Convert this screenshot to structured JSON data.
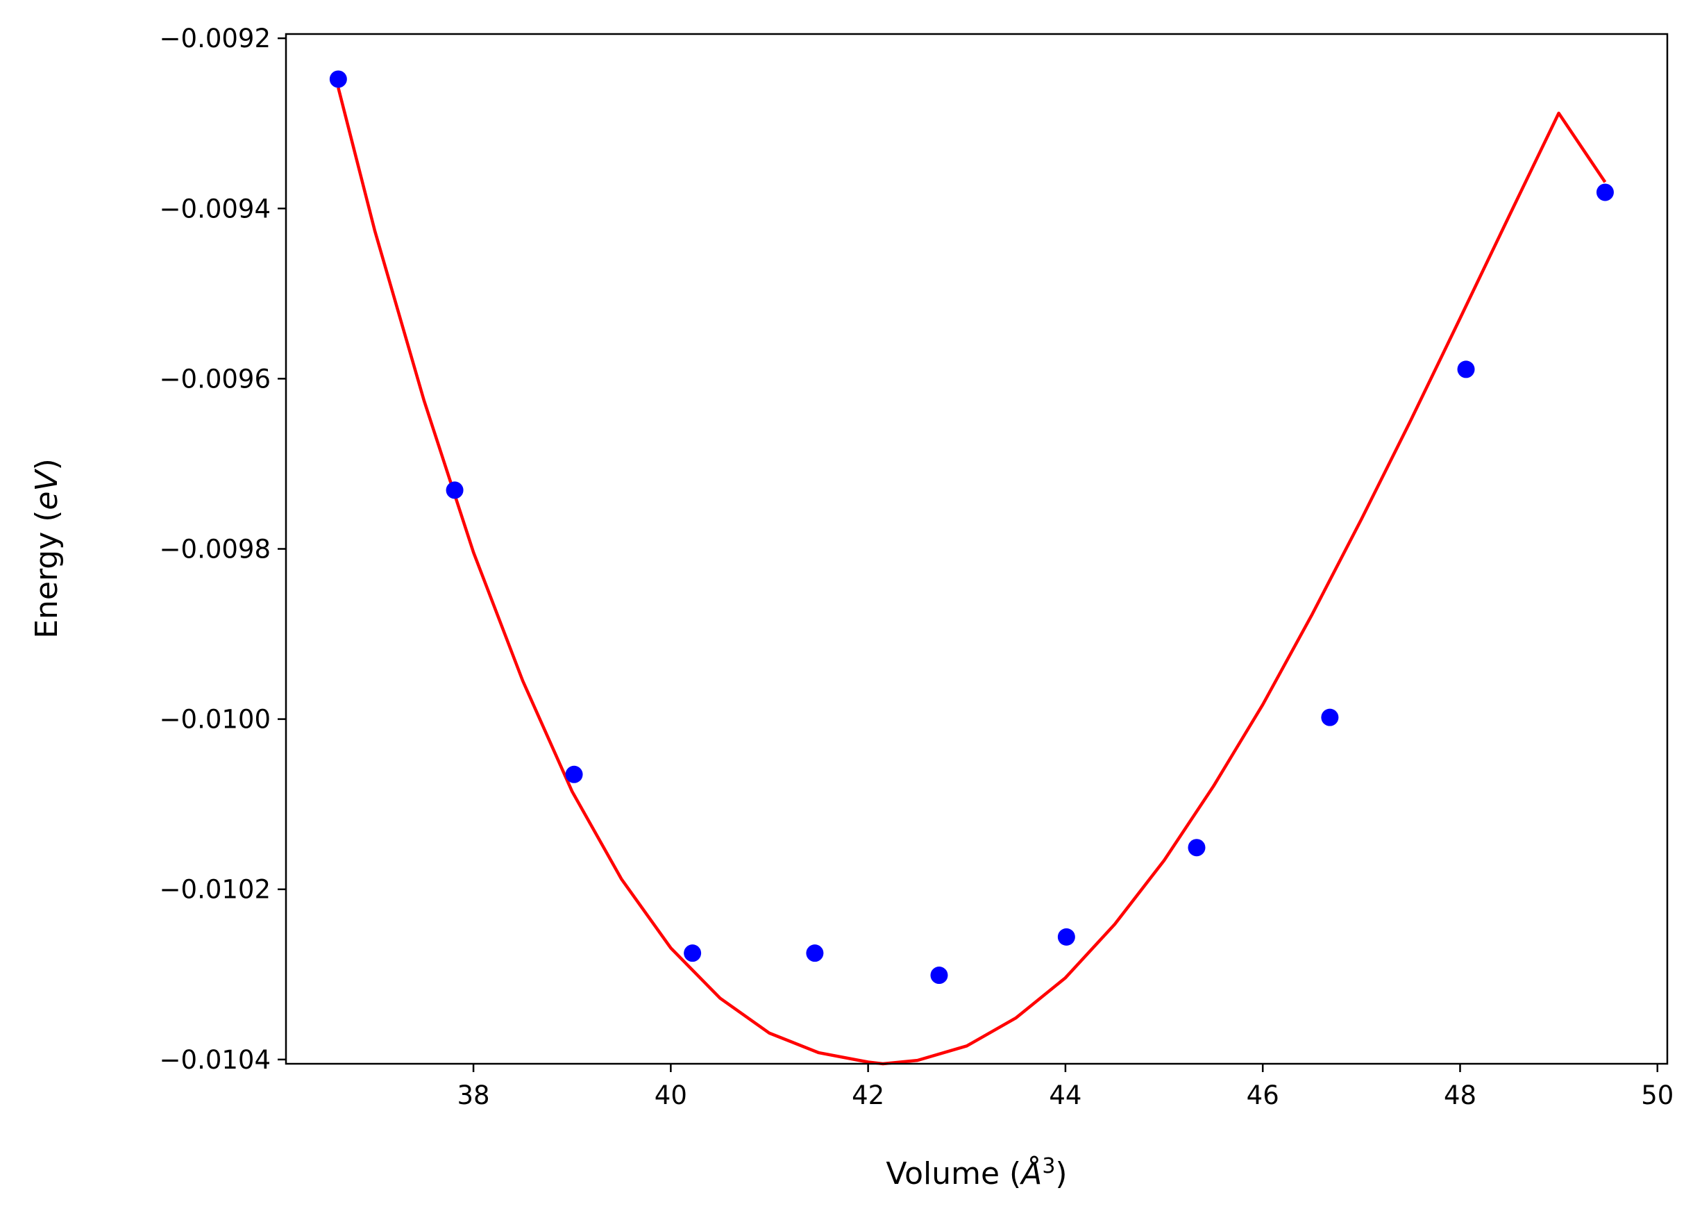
{
  "chart_data": {
    "type": "scatter",
    "title": "",
    "xlabel": "Volume",
    "xlabel_unit": "Å",
    "xlabel_exponent": "3",
    "ylabel": "Energy",
    "ylabel_unit": "eV",
    "xlim": [
      36.1,
      50.1
    ],
    "ylim": [
      -0.010405,
      -0.009195
    ],
    "grid": false,
    "xticks": [
      38,
      40,
      42,
      44,
      46,
      48,
      50
    ],
    "xtick_labels": [
      "38",
      "40",
      "42",
      "44",
      "46",
      "48",
      "50"
    ],
    "yticks": [
      -0.0092,
      -0.0094,
      -0.0096,
      -0.0098,
      -0.01,
      -0.0102,
      -0.0104
    ],
    "ytick_labels": [
      "−0.0092",
      "−0.0094",
      "−0.0096",
      "−0.0098",
      "−0.0100",
      "−0.0102",
      "−0.0104"
    ],
    "series": [
      {
        "kind": "points",
        "color": "#0000ff",
        "x": [
          36.63,
          37.81,
          39.02,
          40.22,
          41.46,
          42.72,
          44.01,
          45.33,
          46.68,
          48.06,
          49.47
        ],
        "y": [
          -0.009248,
          -0.009731,
          -0.010065,
          -0.010275,
          -0.010275,
          -0.010301,
          -0.010256,
          -0.010151,
          -0.009998,
          -0.009589,
          -0.009381
        ]
      },
      {
        "kind": "fit-curve",
        "color": "#ff0000",
        "x": [
          36.63,
          37.0,
          37.5,
          38.0,
          38.5,
          39.0,
          39.5,
          40.0,
          40.5,
          41.0,
          41.5,
          42.0,
          42.15,
          42.5,
          43.0,
          43.5,
          44.0,
          44.5,
          45.0,
          45.5,
          46.0,
          46.5,
          47.0,
          47.5,
          48.0,
          48.5,
          49.0,
          49.47
        ],
        "y": [
          -0.009258,
          -0.009426,
          -0.009626,
          -0.009804,
          -0.009955,
          -0.010085,
          -0.010188,
          -0.010269,
          -0.010328,
          -0.010369,
          -0.010392,
          -0.010403,
          -0.010405,
          -0.010401,
          -0.010384,
          -0.010351,
          -0.010304,
          -0.010241,
          -0.010166,
          -0.010079,
          -0.009983,
          -0.009877,
          -0.009765,
          -0.009649,
          -0.009529,
          -0.009408,
          -0.009288,
          -0.009369
        ]
      }
    ]
  }
}
